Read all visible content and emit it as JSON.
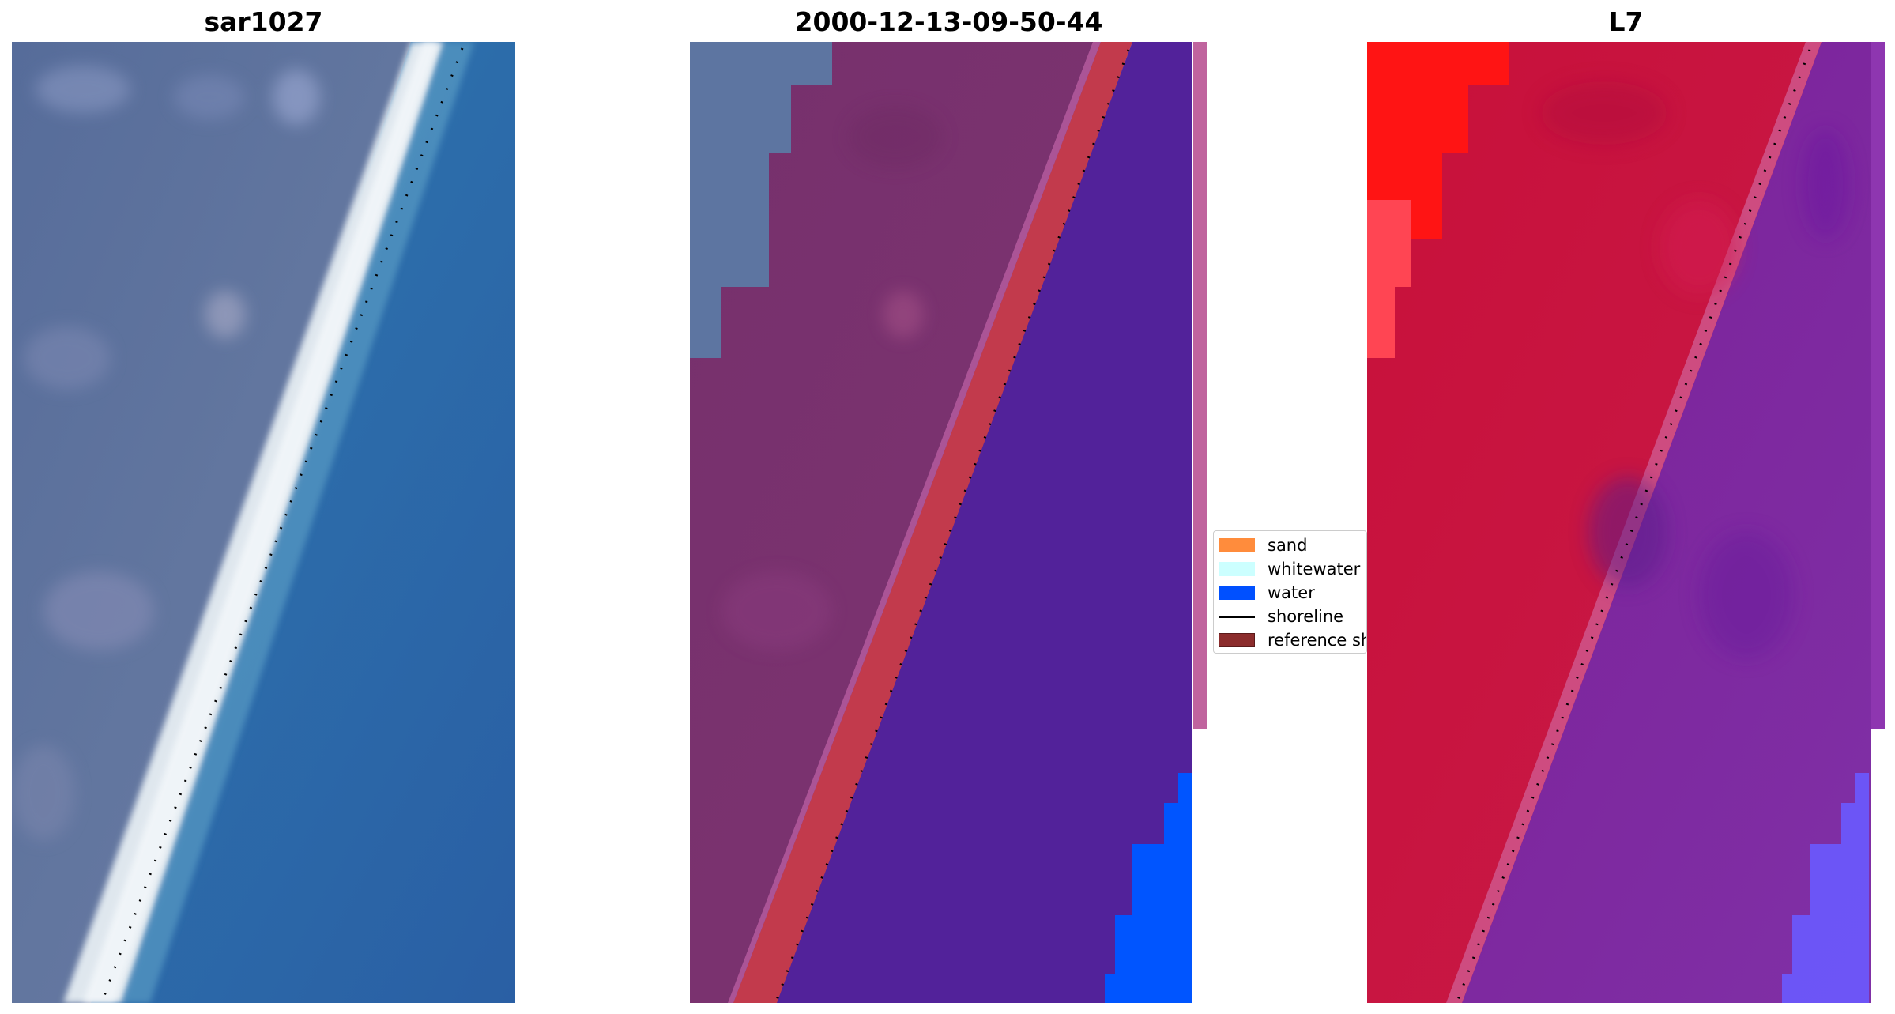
{
  "panels": [
    {
      "title": "sar1027"
    },
    {
      "title": "2000-12-13-09-50-44"
    },
    {
      "title": "L7"
    }
  ],
  "legend": {
    "items": [
      {
        "label": "sand",
        "color": "#ff8c3c"
      },
      {
        "label": "whitewater",
        "color": "#ccffff"
      },
      {
        "label": "water",
        "color": "#0050ff"
      },
      {
        "label": "shoreline",
        "color": "#000000"
      },
      {
        "label": "reference shoreline",
        "color": "#8b2c2c"
      }
    ]
  },
  "colors": {
    "land_rgb": "#5a6f9c",
    "surf_white": "#e8eef2",
    "ocean_rgb": "#2f6fae",
    "classified_land": "#7a2e6e",
    "classified_sand_band": "#c03a4e",
    "classified_water": "#52229a",
    "classified_water_bright": "#0050ff",
    "l7_land": "#c8123e",
    "l7_water": "#7c2aa0",
    "l7_bright_red": "#ff1010"
  }
}
